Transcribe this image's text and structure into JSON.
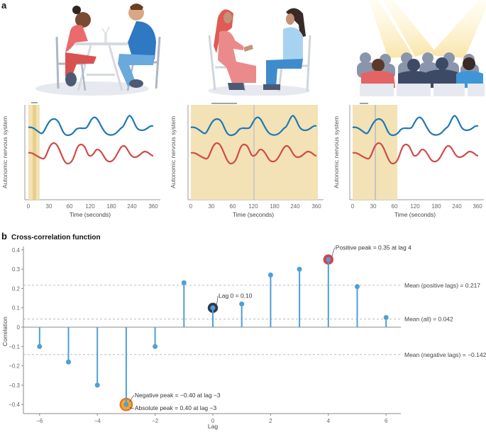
{
  "panel_a": {
    "letter": "a",
    "scenes": [
      {
        "name": "dyad-table-conversation",
        "description": "Two people seated at a table facing each other"
      },
      {
        "name": "dyad-chairs-conversation",
        "description": "Two people seated on chairs facing each other"
      },
      {
        "name": "audience-spotlight",
        "description": "Audience seated in rows under stage spotlights"
      }
    ],
    "mini_charts": [
      {
        "ylabel": "Autonomic nervous system",
        "xlabel": "Time (seconds)",
        "ticks": [
          "0",
          "30",
          "60",
          "120",
          "180",
          "240",
          "360"
        ],
        "window_start": 0,
        "window_end": 16,
        "marker": 8
      },
      {
        "ylabel": "Autonomic nervous system",
        "xlabel": "Time (seconds)",
        "ticks": [
          "0",
          "30",
          "60",
          "120",
          "180",
          "240",
          "360"
        ],
        "window_start": 0,
        "window_end": 360,
        "marker": 120
      },
      {
        "ylabel": "Autonomic nervous system",
        "xlabel": "Time (seconds)",
        "ticks": [
          "0",
          "30",
          "60",
          "120",
          "180",
          "240",
          "360"
        ],
        "window_start": 0,
        "window_end": 65,
        "marker": 33
      }
    ],
    "colors": {
      "blue_series": "#1f77b4",
      "red_series": "#d04a4a",
      "window": "#f2e2b6",
      "window_inner": "#e9cf8a",
      "marker": "#a9b1c2"
    }
  },
  "panel_b": {
    "letter": "b",
    "title": "Cross-correlation function"
  },
  "chart_data": {
    "type": "stem",
    "title": "Cross-correlation function",
    "xlabel": "Lag",
    "ylabel": "Correlation",
    "x": [
      -6,
      -5,
      -4,
      -3,
      -2,
      -1,
      0,
      1,
      2,
      3,
      4,
      5,
      6
    ],
    "values": [
      -0.1,
      -0.18,
      -0.3,
      -0.4,
      -0.1,
      0.23,
      0.1,
      0.12,
      0.27,
      0.3,
      0.35,
      0.21,
      0.05
    ],
    "xticks": [
      -6,
      -4,
      -2,
      0,
      2,
      4,
      6
    ],
    "yticks": [
      -0.4,
      -0.3,
      -0.2,
      -0.1,
      0,
      0.1,
      0.2,
      0.3,
      0.4
    ],
    "ytick_labels": [
      "-0.4",
      "-0.3",
      "-0.2",
      "-0.1",
      "0",
      "0.1",
      "0.2",
      "0.3",
      "0.4"
    ],
    "xtick_labels": [
      "-6",
      "-4",
      "-2",
      "0",
      "2",
      "4",
      "6"
    ],
    "xlim": [
      -6.5,
      6.5
    ],
    "ylim": [
      -0.44,
      0.42
    ],
    "reference_lines": [
      {
        "label": "Mean (positive lags) = 0.217",
        "value": 0.217
      },
      {
        "label": "Mean (all) = 0.042",
        "value": 0.042
      },
      {
        "label": "Mean (negative lags) = −0.142",
        "value": -0.142
      }
    ],
    "annotations": [
      {
        "label": "Positive peak = 0.35 at lag 4",
        "lag": 4,
        "value": 0.35,
        "ring_color": "#d6404a"
      },
      {
        "label": "Lag 0 = 0.10",
        "lag": 0,
        "value": 0.1,
        "ring_color": "#2e3a4f"
      },
      {
        "label": "Negative peak = −0.40 at lag −3",
        "lag": -3,
        "value": -0.4,
        "ring_color": "#f0a830"
      },
      {
        "label": "Absolute peak = 0.40 at lag −3",
        "lag": -3,
        "value": -0.4,
        "ring_color": "#e8731e"
      }
    ],
    "colors": {
      "stem": "#4f9fd6",
      "dot": "#4f9fd6",
      "ref_line": "#b7bcc8",
      "axis": "#888888"
    }
  }
}
